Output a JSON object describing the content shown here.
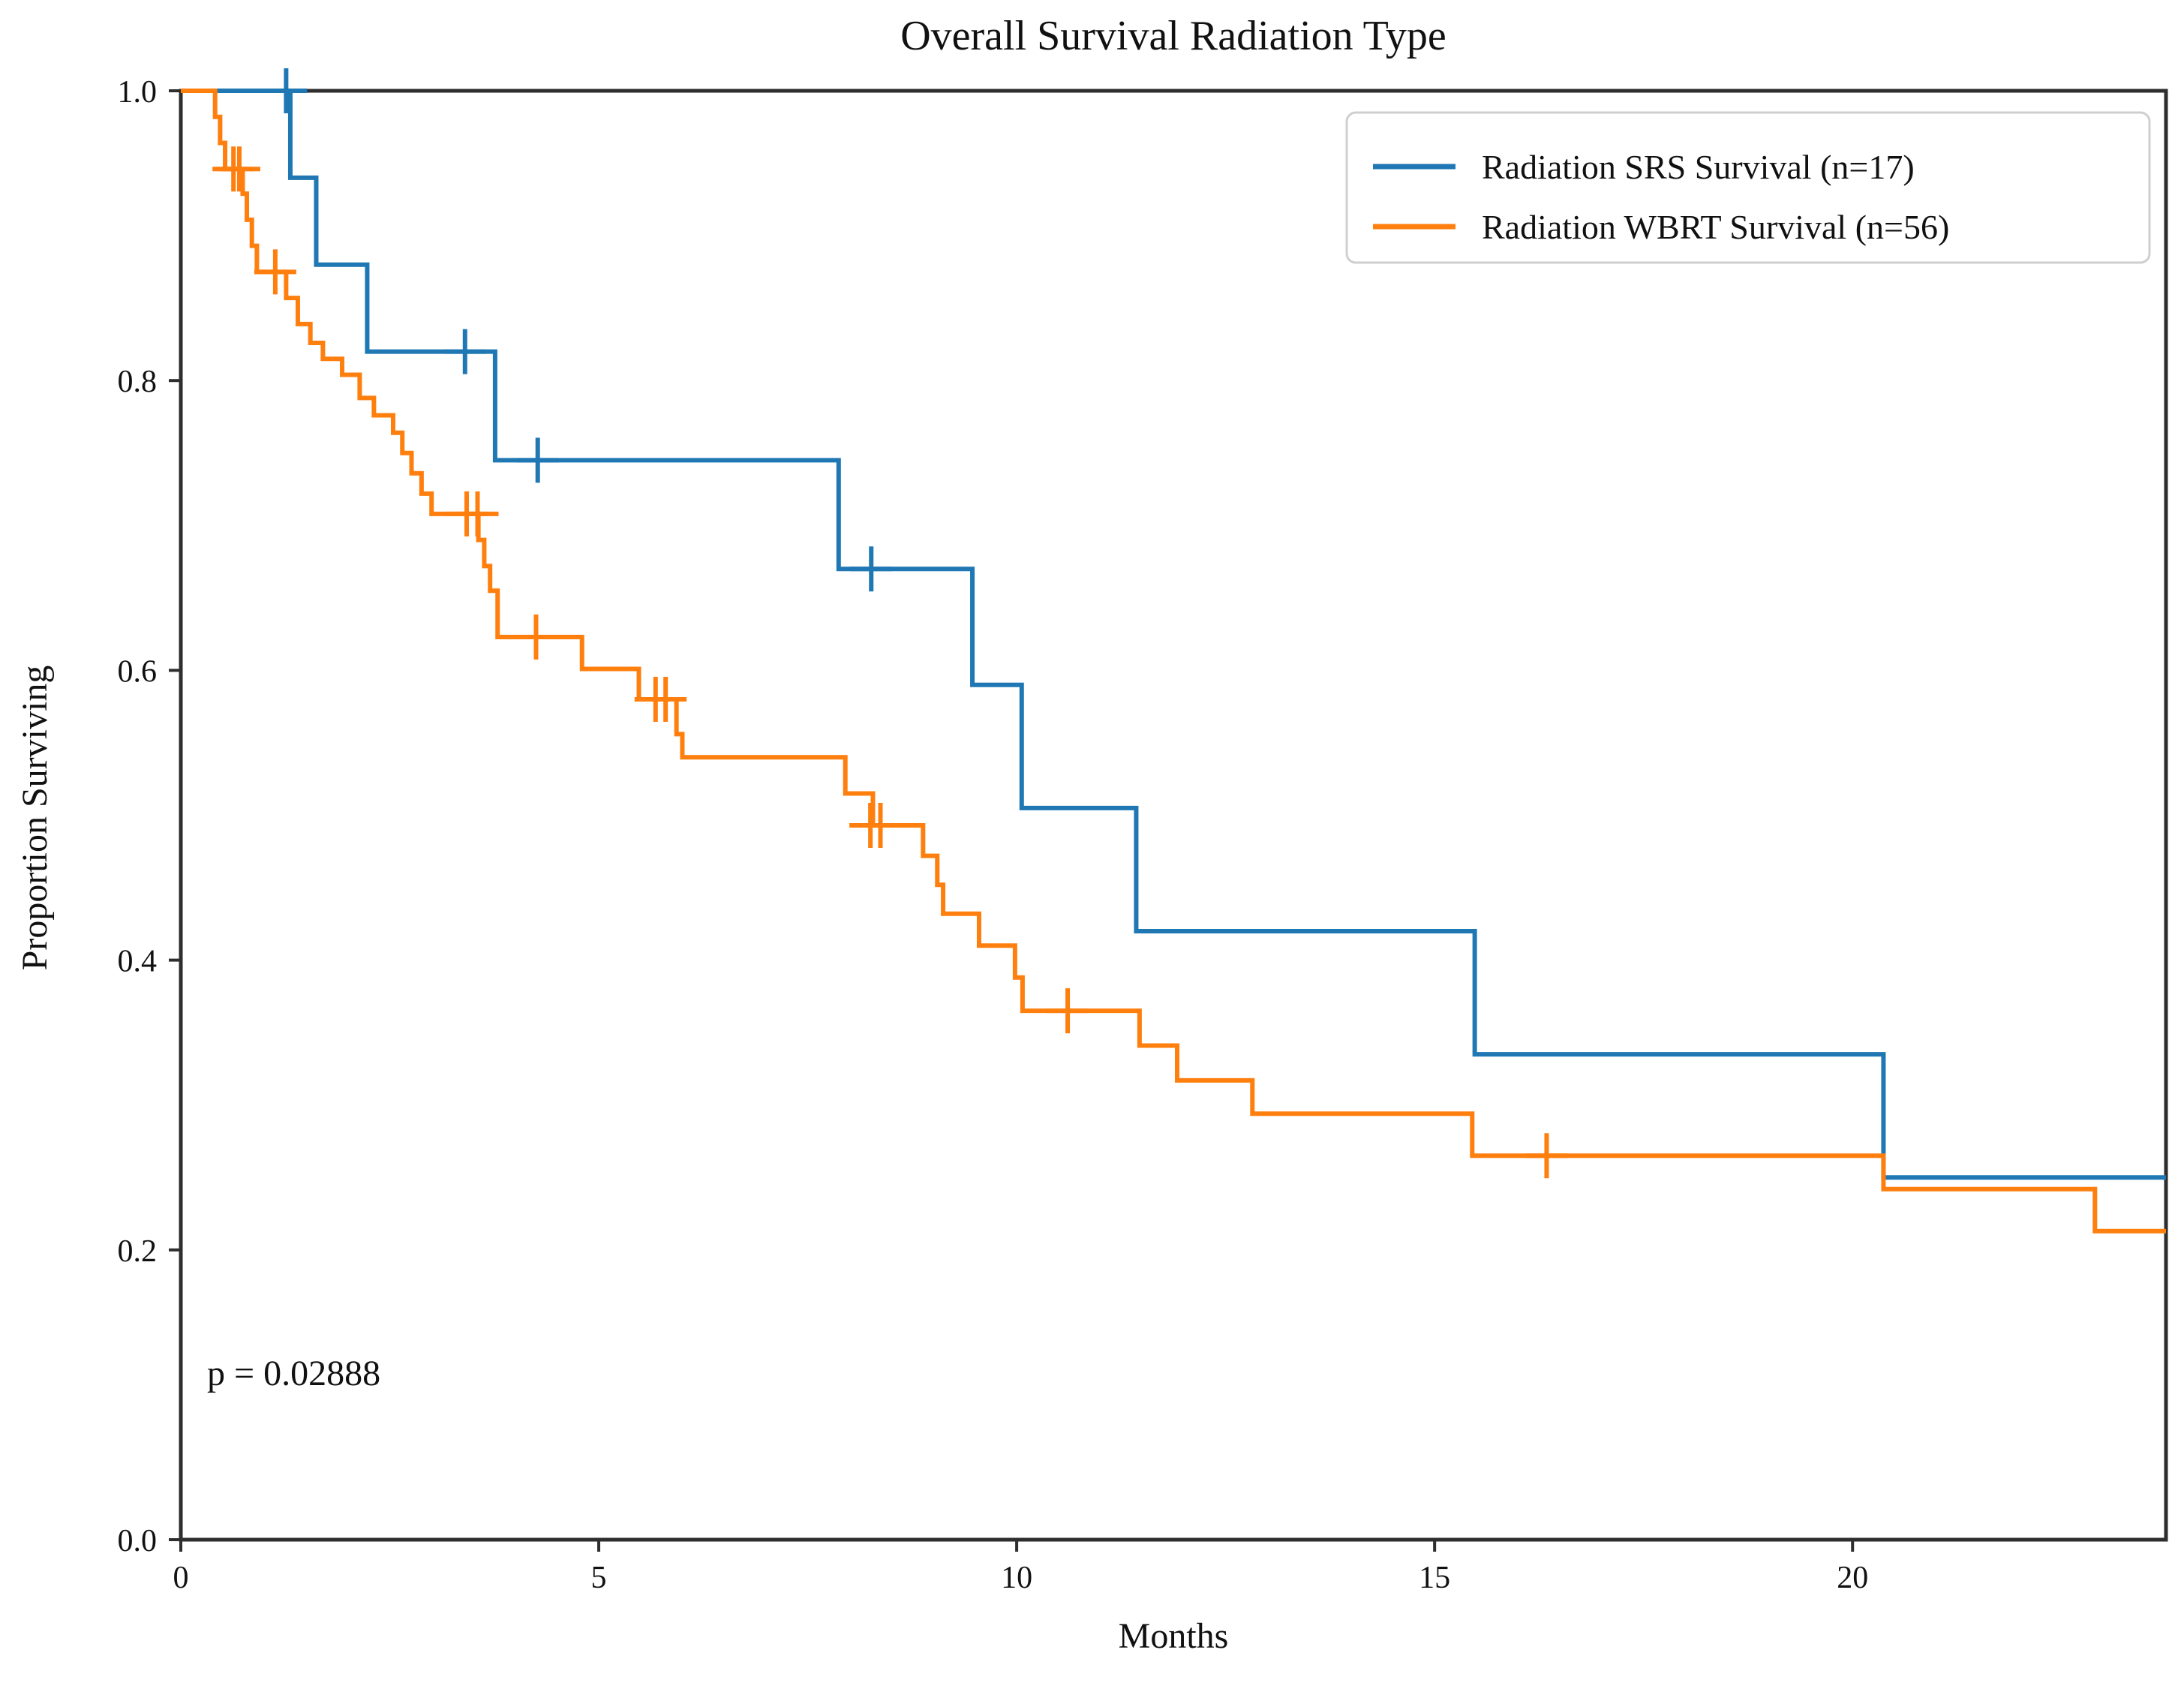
{
  "figure": {
    "background_color": "#ffffff",
    "spine_color": "#2e2e2e",
    "text_color": "#111111",
    "legend_border_color": "#cfcfcf",
    "legend_background": "#ffffff"
  },
  "chart_data": {
    "type": "line",
    "subtype": "kaplan-meier-step-survival",
    "title": "Overall Survival Radiation Type",
    "xlabel": "Months",
    "ylabel": "Proportion Surviving",
    "grid": false,
    "legend_position": "upper right",
    "xlim": [
      0,
      23.75
    ],
    "ylim": [
      0,
      1.0
    ],
    "x_ticks": [
      0,
      5,
      10,
      15,
      20
    ],
    "x_tick_labels": [
      "0",
      "5",
      "10",
      "15",
      "20"
    ],
    "y_ticks": [
      0.0,
      0.2,
      0.4,
      0.6,
      0.8,
      1.0
    ],
    "y_tick_labels": [
      "0.0",
      "0.2",
      "0.4",
      "0.6",
      "0.8",
      "1.0"
    ],
    "annotation": {
      "text": "p = 0.02888",
      "x_months": 0.35,
      "y_proportion": 0.12
    },
    "series": [
      {
        "name": "Radiation SRS Survival (n=17)",
        "n": 17,
        "color": "#1f77b4",
        "end_x": 23.75,
        "steps": [
          [
            0,
            1.0
          ],
          [
            1.31,
            0.94
          ],
          [
            1.62,
            0.88
          ],
          [
            2.23,
            0.82
          ],
          [
            3.76,
            0.745
          ],
          [
            7.87,
            0.67
          ],
          [
            9.47,
            0.59
          ],
          [
            10.06,
            0.505
          ],
          [
            11.43,
            0.42
          ],
          [
            15.48,
            0.335
          ],
          [
            20.37,
            0.25
          ]
        ],
        "censors": [
          [
            1.26,
            1.0
          ],
          [
            3.4,
            0.82
          ],
          [
            4.27,
            0.745
          ],
          [
            8.26,
            0.67
          ]
        ]
      },
      {
        "name": "Radiation WBRT Survival (n=56)",
        "n": 56,
        "color": "#ff7f0e",
        "end_x": 23.75,
        "steps": [
          [
            0,
            1.0
          ],
          [
            0.41,
            0.982
          ],
          [
            0.47,
            0.964
          ],
          [
            0.53,
            0.946
          ],
          [
            0.74,
            0.929
          ],
          [
            0.79,
            0.911
          ],
          [
            0.85,
            0.893
          ],
          [
            0.91,
            0.875
          ],
          [
            1.26,
            0.857
          ],
          [
            1.4,
            0.839
          ],
          [
            1.55,
            0.826
          ],
          [
            1.7,
            0.815
          ],
          [
            1.93,
            0.804
          ],
          [
            2.14,
            0.788
          ],
          [
            2.31,
            0.776
          ],
          [
            2.54,
            0.764
          ],
          [
            2.65,
            0.75
          ],
          [
            2.76,
            0.736
          ],
          [
            2.88,
            0.722
          ],
          [
            3.0,
            0.708
          ],
          [
            3.56,
            0.69
          ],
          [
            3.63,
            0.672
          ],
          [
            3.7,
            0.655
          ],
          [
            3.79,
            0.623
          ],
          [
            4.8,
            0.601
          ],
          [
            5.48,
            0.58
          ],
          [
            5.93,
            0.556
          ],
          [
            6.0,
            0.54
          ],
          [
            7.95,
            0.515
          ],
          [
            8.28,
            0.493
          ],
          [
            8.88,
            0.472
          ],
          [
            9.05,
            0.452
          ],
          [
            9.12,
            0.432
          ],
          [
            9.55,
            0.41
          ],
          [
            9.98,
            0.388
          ],
          [
            10.07,
            0.365
          ],
          [
            11.47,
            0.341
          ],
          [
            11.92,
            0.317
          ],
          [
            12.82,
            0.294
          ],
          [
            15.45,
            0.265
          ],
          [
            20.37,
            0.242
          ],
          [
            22.9,
            0.213
          ]
        ],
        "censors": [
          [
            0.63,
            0.946
          ],
          [
            0.7,
            0.946
          ],
          [
            1.13,
            0.875
          ],
          [
            3.42,
            0.708
          ],
          [
            3.55,
            0.708
          ],
          [
            4.25,
            0.623
          ],
          [
            5.68,
            0.58
          ],
          [
            5.8,
            0.58
          ],
          [
            8.25,
            0.493
          ],
          [
            8.37,
            0.493
          ],
          [
            10.61,
            0.365
          ],
          [
            16.34,
            0.265
          ]
        ]
      }
    ]
  }
}
